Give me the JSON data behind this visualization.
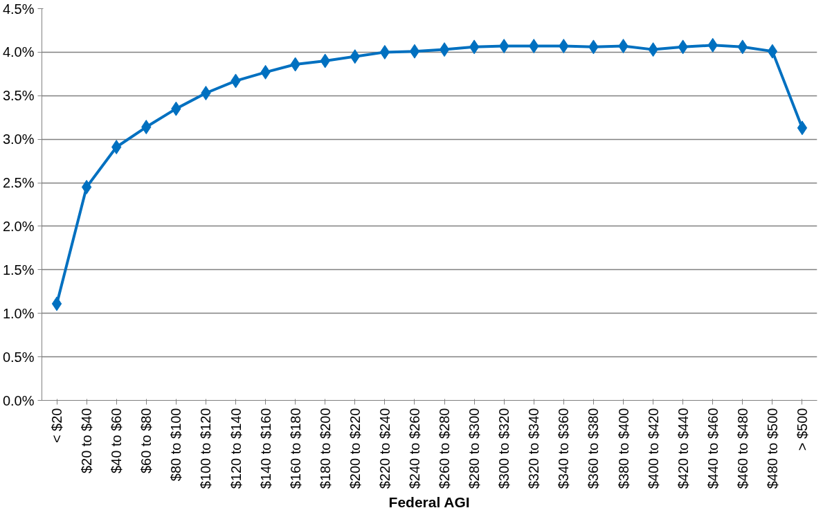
{
  "chart_data": {
    "type": "line",
    "xlabel": "Federal AGI",
    "categories": [
      "< $20",
      "$20 to $40",
      "$40 to $60",
      "$60 to $80",
      "$80 to $100",
      "$100 to $120",
      "$120 to $140",
      "$140 to $160",
      "$160 to $180",
      "$180 to $200",
      "$200 to $220",
      "$220 to $240",
      "$240 to $260",
      "$260 to $280",
      "$280 to $300",
      "$300 to $320",
      "$320 to $340",
      "$340 to $360",
      "$360 to $380",
      "$380 to $400",
      "$400 to $420",
      "$420 to $440",
      "$440 to $460",
      "$460 to $480",
      "$480 to $500",
      "> $500"
    ],
    "series": [
      {
        "color": "#0070c0",
        "values": [
          1.11,
          2.45,
          2.91,
          3.14,
          3.35,
          3.53,
          3.67,
          3.77,
          3.86,
          3.9,
          3.95,
          4.0,
          4.01,
          4.03,
          4.06,
          4.07,
          4.07,
          4.07,
          4.06,
          4.07,
          4.03,
          4.06,
          4.08,
          4.06,
          4.01,
          3.13
        ]
      }
    ],
    "ylim": [
      0,
      4.5
    ],
    "yticks": [
      {
        "value": 0,
        "label": "0.0%"
      },
      {
        "value": 0.5,
        "label": "0.5%"
      },
      {
        "value": 1,
        "label": "1.0%"
      },
      {
        "value": 1.5,
        "label": "1.5%"
      },
      {
        "value": 2,
        "label": "2.0%"
      },
      {
        "value": 2.5,
        "label": "2.5%"
      },
      {
        "value": 3,
        "label": "3.0%"
      },
      {
        "value": 3.5,
        "label": "3.5%"
      },
      {
        "value": 4,
        "label": "4.0%"
      },
      {
        "value": 4.5,
        "label": "4.5%"
      }
    ],
    "grid": "y",
    "marker": "diamond",
    "line_style": "solid"
  }
}
